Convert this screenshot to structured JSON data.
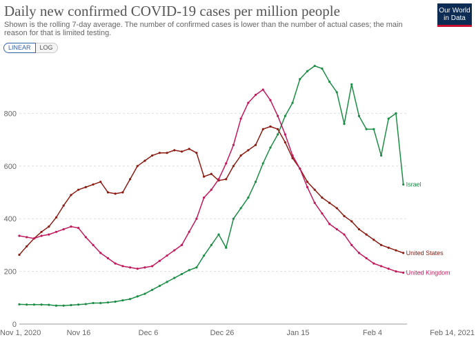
{
  "page": {
    "title": "Daily new confirmed COVID-19 cases per million people",
    "subtitle": "Shown is the rolling 7-day average. The number of confirmed cases is lower than the number of actual cases; the main reason for that is limited testing.",
    "logo_line1": "Our World",
    "logo_line2": "in Data",
    "toggle": {
      "linear": "LINEAR",
      "log": "LOG"
    }
  },
  "chart_data": {
    "type": "line",
    "title": "Daily new confirmed COVID-19 cases per million people",
    "x_ticks": [
      "Nov 1, 2020",
      "Nov 16",
      "Dec 6",
      "Dec 26",
      "Jan 15",
      "Feb 4",
      "Feb 14, 2021"
    ],
    "y_ticks": [
      "0",
      "200",
      "400",
      "600",
      "800"
    ],
    "ylim": [
      0,
      1000
    ],
    "xlim": [
      0,
      105
    ],
    "grid": "horizontal",
    "legend": "line-end labels",
    "series": [
      {
        "name": "Israel",
        "color": "#1a8c44",
        "x": [
          0,
          2,
          4,
          6,
          8,
          10,
          12,
          14,
          16,
          18,
          20,
          22,
          24,
          26,
          28,
          30,
          32,
          34,
          36,
          38,
          40,
          42,
          44,
          46,
          48,
          50,
          52,
          54,
          56,
          58,
          60,
          62,
          64,
          66,
          68,
          70,
          72,
          74,
          76,
          78,
          80,
          82,
          84,
          86,
          88,
          90,
          92,
          94,
          96,
          98,
          100,
          102,
          104
        ],
        "y": [
          75,
          74,
          74,
          74,
          73,
          70,
          70,
          72,
          74,
          76,
          80,
          80,
          82,
          85,
          90,
          95,
          105,
          115,
          130,
          145,
          160,
          175,
          190,
          205,
          215,
          260,
          300,
          340,
          290,
          400,
          440,
          480,
          540,
          610,
          670,
          720,
          790,
          840,
          930,
          960,
          980,
          970,
          920,
          880,
          760,
          910,
          790,
          740,
          740,
          640,
          780,
          800,
          530
        ]
      },
      {
        "name": "United States",
        "color": "#8c1c13",
        "x": [
          0,
          2,
          4,
          6,
          8,
          10,
          12,
          14,
          16,
          18,
          20,
          22,
          24,
          26,
          28,
          30,
          32,
          34,
          36,
          38,
          40,
          42,
          44,
          46,
          48,
          50,
          52,
          54,
          56,
          58,
          60,
          62,
          64,
          66,
          68,
          70,
          72,
          74,
          76,
          78,
          80,
          82,
          84,
          86,
          88,
          90,
          92,
          94,
          96,
          98,
          100,
          102,
          104
        ],
        "y": [
          263,
          295,
          325,
          350,
          370,
          405,
          450,
          490,
          510,
          520,
          530,
          540,
          500,
          495,
          500,
          550,
          600,
          620,
          640,
          650,
          650,
          660,
          655,
          665,
          650,
          560,
          570,
          545,
          550,
          600,
          640,
          660,
          680,
          740,
          750,
          740,
          690,
          630,
          590,
          540,
          510,
          480,
          460,
          440,
          410,
          390,
          360,
          340,
          320,
          300,
          290,
          280,
          270
        ]
      },
      {
        "name": "United Kingdom",
        "color": "#c2185b",
        "x": [
          0,
          2,
          4,
          6,
          8,
          10,
          12,
          14,
          16,
          18,
          20,
          22,
          24,
          26,
          28,
          30,
          32,
          34,
          36,
          38,
          40,
          42,
          44,
          46,
          48,
          50,
          52,
          54,
          56,
          58,
          60,
          62,
          64,
          66,
          68,
          70,
          72,
          74,
          76,
          78,
          80,
          82,
          84,
          86,
          88,
          90,
          92,
          94,
          96,
          98,
          100,
          102,
          104
        ],
        "y": [
          335,
          330,
          325,
          335,
          340,
          350,
          360,
          370,
          365,
          330,
          300,
          270,
          250,
          230,
          220,
          215,
          210,
          215,
          220,
          240,
          260,
          280,
          300,
          350,
          400,
          480,
          510,
          550,
          610,
          680,
          780,
          840,
          870,
          890,
          850,
          790,
          720,
          640,
          590,
          520,
          460,
          420,
          380,
          360,
          340,
          300,
          270,
          250,
          230,
          220,
          210,
          200,
          195
        ]
      }
    ]
  }
}
